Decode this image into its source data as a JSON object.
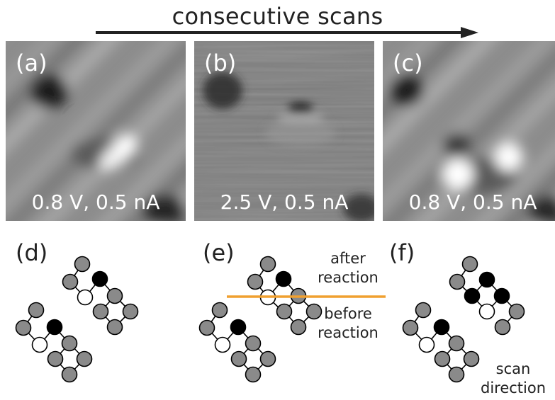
{
  "header": {
    "title": "consecutive scans"
  },
  "panels": [
    {
      "label": "(a)",
      "caption": "0.8 V, 0.5 nA"
    },
    {
      "label": "(b)",
      "caption": "2.5 V, 0.5 nA"
    },
    {
      "label": "(c)",
      "caption": "0.8 V, 0.5 nA"
    }
  ],
  "diagrams": [
    {
      "label": "(d)"
    },
    {
      "label": "(e)",
      "after_text": "after reaction",
      "before_text": "before reaction"
    },
    {
      "label": "(f)",
      "scan_text": "scan direction"
    }
  ],
  "colors": {
    "atom_gray": "#8a8a8a",
    "atom_black": "#000000",
    "atom_white": "#ffffff",
    "line": "#f0a030",
    "arrow": "#222222"
  }
}
